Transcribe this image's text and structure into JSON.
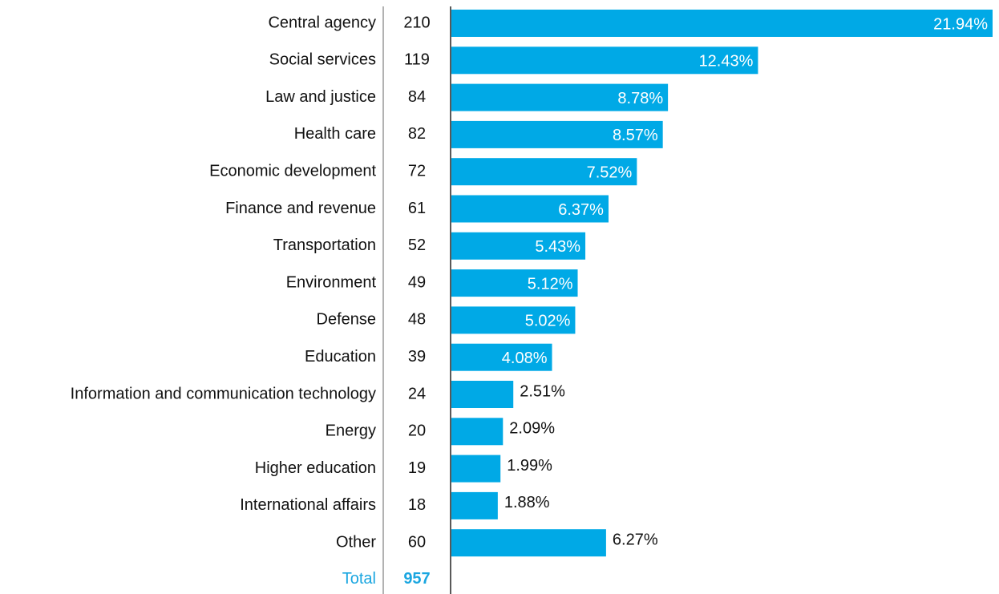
{
  "chart_data": {
    "type": "bar",
    "orientation": "horizontal",
    "categories": [
      "Central agency",
      "Social services",
      "Law and justice",
      "Health care",
      "Economic development",
      "Finance and revenue",
      "Transportation",
      "Environment",
      "Defense",
      "Education",
      "Information and communication technology",
      "Energy",
      "Higher education",
      "International affairs",
      "Other"
    ],
    "counts": [
      210,
      119,
      84,
      82,
      72,
      61,
      52,
      49,
      48,
      39,
      24,
      20,
      19,
      18,
      60
    ],
    "values": [
      21.94,
      12.43,
      8.78,
      8.57,
      7.52,
      6.37,
      5.43,
      5.12,
      5.02,
      4.08,
      2.51,
      2.09,
      1.99,
      1.88,
      6.27
    ],
    "value_labels": [
      "21.94%",
      "12.43%",
      "8.78%",
      "8.57%",
      "7.52%",
      "6.37%",
      "5.43%",
      "5.12%",
      "5.02%",
      "4.08%",
      "2.51%",
      "2.09%",
      "1.99%",
      "1.88%",
      "6.27%"
    ],
    "label_inside": [
      true,
      true,
      true,
      true,
      true,
      true,
      true,
      true,
      true,
      true,
      false,
      false,
      false,
      false,
      false
    ],
    "total_label": "Total",
    "total": 957,
    "color": "#00a9e6",
    "total_color": "#1aa6e0"
  }
}
